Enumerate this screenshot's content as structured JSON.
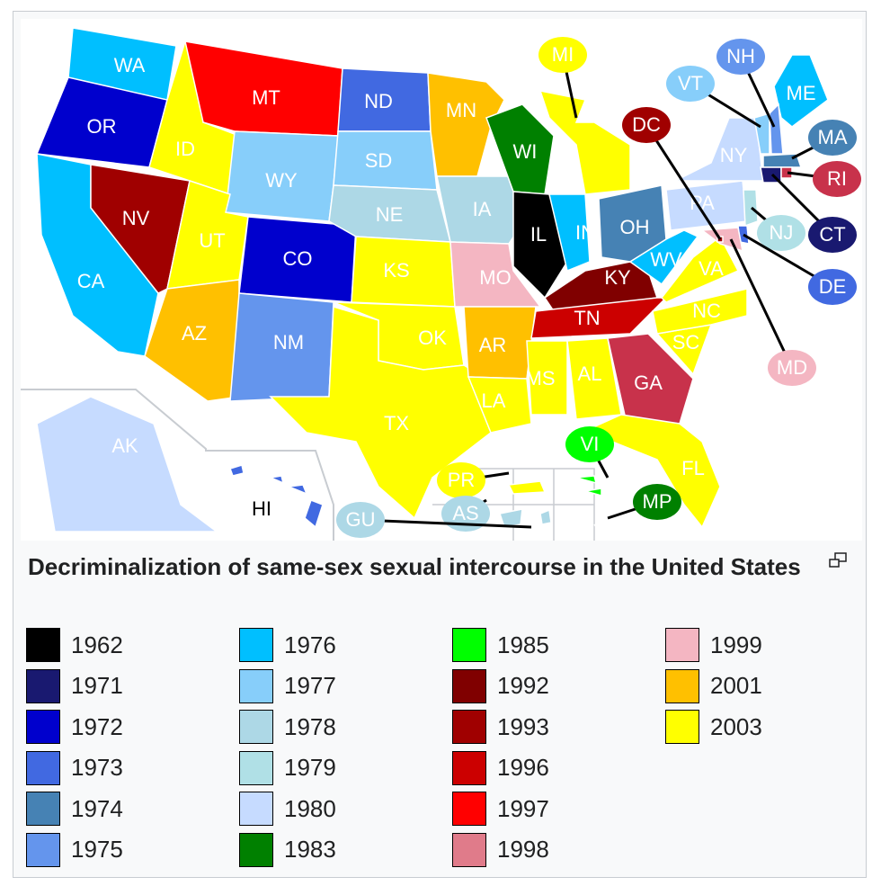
{
  "map": {
    "states": [
      {
        "label": "WA",
        "color": "#00bfff"
      },
      {
        "label": "OR",
        "color": "#0000cd"
      },
      {
        "label": "CA",
        "color": "#00bfff"
      },
      {
        "label": "NV",
        "color": "#a00000"
      },
      {
        "label": "ID",
        "color": "#ffff00"
      },
      {
        "label": "MT",
        "color": "#ff0000"
      },
      {
        "label": "WY",
        "color": "#87cefa"
      },
      {
        "label": "UT",
        "color": "#ffff00"
      },
      {
        "label": "CO",
        "color": "#0000cd"
      },
      {
        "label": "AZ",
        "color": "#ffc000"
      },
      {
        "label": "NM",
        "color": "#6495ed"
      },
      {
        "label": "ND",
        "color": "#4169e1"
      },
      {
        "label": "SD",
        "color": "#87cefa"
      },
      {
        "label": "NE",
        "color": "#add8e6"
      },
      {
        "label": "KS",
        "color": "#ffff00"
      },
      {
        "label": "OK",
        "color": "#ffff00"
      },
      {
        "label": "TX",
        "color": "#ffff00"
      },
      {
        "label": "MN",
        "color": "#ffc000"
      },
      {
        "label": "IA",
        "color": "#add8e6"
      },
      {
        "label": "MO",
        "color": "#f4b6c2"
      },
      {
        "label": "AR",
        "color": "#ffc000"
      },
      {
        "label": "LA",
        "color": "#ffff00"
      },
      {
        "label": "WI",
        "color": "#008000"
      },
      {
        "label": "IL",
        "color": "#000000"
      },
      {
        "label": "MI",
        "color": "#ffff00"
      },
      {
        "label": "IN",
        "color": "#00bfff"
      },
      {
        "label": "OH",
        "color": "#4682b4"
      },
      {
        "label": "KY",
        "color": "#800000"
      },
      {
        "label": "TN",
        "color": "#cc0000"
      },
      {
        "label": "MS",
        "color": "#ffff00"
      },
      {
        "label": "AL",
        "color": "#ffff00"
      },
      {
        "label": "GA",
        "color": "#c8324b"
      },
      {
        "label": "FL",
        "color": "#ffff00"
      },
      {
        "label": "SC",
        "color": "#ffff00"
      },
      {
        "label": "NC",
        "color": "#ffff00"
      },
      {
        "label": "VA",
        "color": "#ffff00"
      },
      {
        "label": "WV",
        "color": "#00bfff"
      },
      {
        "label": "PA",
        "color": "#c6dbff"
      },
      {
        "label": "NY",
        "color": "#c6dbff"
      },
      {
        "label": "ME",
        "color": "#00bfff"
      },
      {
        "label": "VT",
        "color": "#87cefa"
      },
      {
        "label": "NH",
        "color": "#6495ed"
      },
      {
        "label": "MA",
        "color": "#4682b4"
      },
      {
        "label": "CT",
        "color": "#191970"
      },
      {
        "label": "RI",
        "color": "#c8324b"
      },
      {
        "label": "NJ",
        "color": "#b0e0e6"
      },
      {
        "label": "DE",
        "color": "#4169e1"
      },
      {
        "label": "MD",
        "color": "#f4b6c2"
      },
      {
        "label": "DC",
        "color": "#a00000"
      },
      {
        "label": "AK",
        "color": "#c6dbff"
      },
      {
        "label": "HI",
        "color": "#4169e1"
      },
      {
        "label": "PR",
        "color": "#ffff00"
      },
      {
        "label": "VI",
        "color": "#00ff00"
      },
      {
        "label": "AS",
        "color": "#add8e6"
      },
      {
        "label": "GU",
        "color": "#add8e6"
      },
      {
        "label": "MP",
        "color": "#008000"
      }
    ]
  },
  "caption": "Decriminalization of same-sex sexual intercourse in the United States",
  "legend": [
    {
      "label": "1962",
      "color": "#000000"
    },
    {
      "label": "1971",
      "color": "#191970"
    },
    {
      "label": "1972",
      "color": "#0000cd"
    },
    {
      "label": "1973",
      "color": "#4169e1"
    },
    {
      "label": "1974",
      "color": "#4682b4"
    },
    {
      "label": "1975",
      "color": "#6495ed"
    },
    {
      "label": "1976",
      "color": "#00bfff"
    },
    {
      "label": "1977",
      "color": "#87cefa"
    },
    {
      "label": "1978",
      "color": "#add8e6"
    },
    {
      "label": "1979",
      "color": "#b0e0e6"
    },
    {
      "label": "1980",
      "color": "#c6dbff"
    },
    {
      "label": "1983",
      "color": "#008000"
    },
    {
      "label": "1985",
      "color": "#00ff00"
    },
    {
      "label": "1992",
      "color": "#800000"
    },
    {
      "label": "1993",
      "color": "#a00000"
    },
    {
      "label": "1996",
      "color": "#cc0000"
    },
    {
      "label": "1997",
      "color": "#ff0000"
    },
    {
      "label": "1998",
      "color": "#e07b8a"
    },
    {
      "label": "1999",
      "color": "#f4b6c2"
    },
    {
      "label": "2001",
      "color": "#ffc000"
    },
    {
      "label": "2003",
      "color": "#ffff00"
    }
  ]
}
